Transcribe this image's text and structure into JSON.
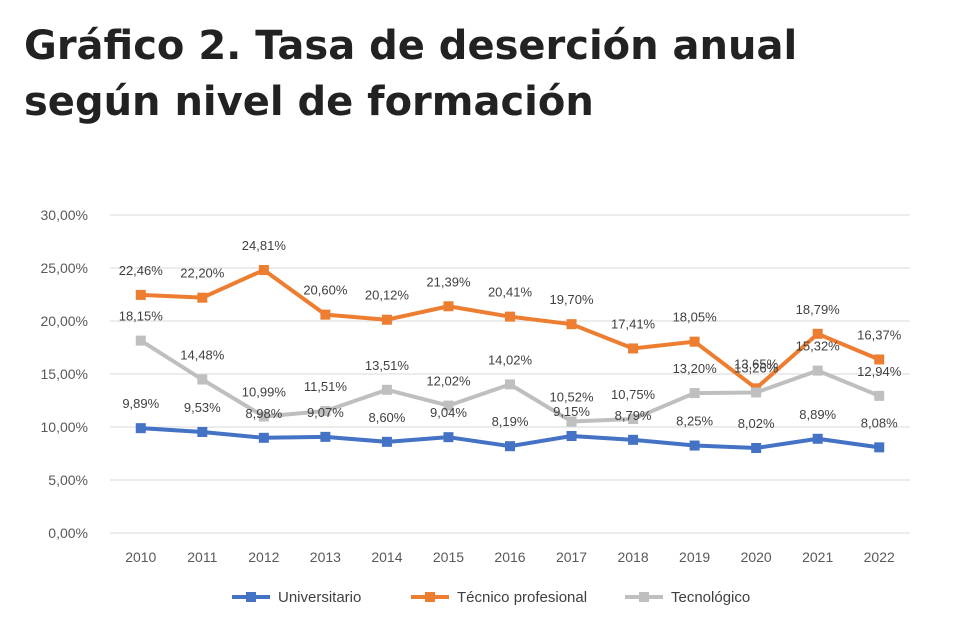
{
  "title": "Gráfico 2. Tasa de deserción anual según nivel de formación",
  "colors": {
    "universitario": "#4472C4",
    "tecnico": "#ED7D31",
    "tecnologico": "#BFBFBF",
    "grid": "#D9D9D9"
  },
  "chart_data": {
    "type": "line",
    "title": "Gráfico 2. Tasa de deserción anual según nivel de formación",
    "xlabel": "",
    "ylabel": "",
    "x": [
      "2010",
      "2011",
      "2012",
      "2013",
      "2014",
      "2015",
      "2016",
      "2017",
      "2018",
      "2019",
      "2020",
      "2021",
      "2022"
    ],
    "ylim": [
      0,
      30
    ],
    "y_ticks": [
      "0,00%",
      "5,00%",
      "10,00%",
      "15,00%",
      "20,00%",
      "25,00%",
      "30,00%"
    ],
    "grid": true,
    "legend_position": "bottom",
    "series": [
      {
        "name": "Universitario",
        "values": [
          9.89,
          9.53,
          8.98,
          9.07,
          8.6,
          9.04,
          8.19,
          9.15,
          8.79,
          8.25,
          8.02,
          8.89,
          8.08
        ],
        "labels": [
          "9,89%",
          "9,53%",
          "8,98%",
          "9,07%",
          "8,60%",
          "9,04%",
          "8,19%",
          "9,15%",
          "8,79%",
          "8,25%",
          "8,02%",
          "8,89%",
          "8,08%"
        ]
      },
      {
        "name": "Técnico profesional",
        "values": [
          22.46,
          22.2,
          24.81,
          20.6,
          20.12,
          21.39,
          20.41,
          19.7,
          17.41,
          18.05,
          13.65,
          18.79,
          16.37
        ],
        "labels": [
          "22,46%",
          "22,20%",
          "24,81%",
          "20,60%",
          "20,12%",
          "21,39%",
          "20,41%",
          "19,70%",
          "17,41%",
          "18,05%",
          "13,65%",
          "18,79%",
          "16,37%"
        ]
      },
      {
        "name": "Tecnológico",
        "values": [
          18.15,
          14.48,
          10.99,
          11.51,
          13.51,
          12.02,
          14.02,
          10.52,
          10.75,
          13.2,
          13.26,
          15.32,
          12.94
        ],
        "labels": [
          "18,15%",
          "14,48%",
          "10,99%",
          "11,51%",
          "13,51%",
          "12,02%",
          "14,02%",
          "10,52%",
          "10,75%",
          "13,20%",
          "13,26%",
          "15,32%",
          "12,94%"
        ]
      }
    ]
  }
}
